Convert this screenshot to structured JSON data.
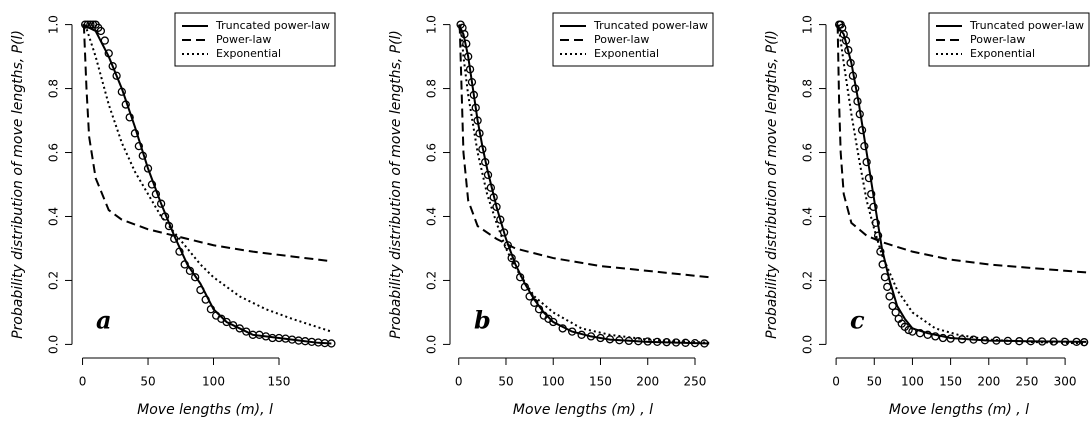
{
  "chart_data": [
    {
      "type": "line",
      "annotation": "a",
      "xlabel": "Move lengths (m), l",
      "ylabel": "Probability distribution of move lengths, P(l)",
      "xlim": [
        -5,
        192
      ],
      "ylim": [
        -0.03,
        1.03
      ],
      "xticks": [
        0,
        50,
        100,
        150
      ],
      "yticks": [
        {
          "value": 0,
          "label": "0.0"
        },
        {
          "value": 0.2,
          "label": "0.2"
        },
        {
          "value": 0.4,
          "label": "0.4"
        },
        {
          "value": 0.6,
          "label": "0.6"
        },
        {
          "value": 0.8,
          "label": "0.8"
        },
        {
          "value": 1,
          "label": "1.0"
        }
      ],
      "legend": "top-right",
      "series": [
        {
          "name": "Truncated power-law",
          "color": "#000000",
          "linestyle": "solid",
          "x": [
            0,
            10,
            20,
            30,
            40,
            50,
            60,
            70,
            80,
            90,
            100,
            110,
            120,
            130,
            140,
            150,
            160,
            170,
            180,
            190
          ],
          "values": [
            1.0,
            0.98,
            0.9,
            0.8,
            0.68,
            0.55,
            0.44,
            0.34,
            0.25,
            0.19,
            0.11,
            0.07,
            0.05,
            0.03,
            0.025,
            0.02,
            0.015,
            0.01,
            0.005,
            0.003
          ]
        },
        {
          "name": "Power-law",
          "color": "#000000",
          "linestyle": "dashed",
          "x": [
            1,
            3,
            5,
            10,
            20,
            30,
            50,
            70,
            100,
            130,
            160,
            190
          ],
          "values": [
            1.0,
            0.8,
            0.65,
            0.52,
            0.42,
            0.39,
            0.36,
            0.34,
            0.31,
            0.29,
            0.275,
            0.26
          ]
        },
        {
          "name": "Exponential",
          "color": "#000000",
          "linestyle": "dotted",
          "x": [
            2,
            10,
            20,
            30,
            40,
            50,
            60,
            70,
            80,
            90,
            100,
            120,
            140,
            160,
            190
          ],
          "values": [
            1.0,
            0.9,
            0.75,
            0.63,
            0.54,
            0.47,
            0.4,
            0.35,
            0.3,
            0.25,
            0.21,
            0.15,
            0.11,
            0.08,
            0.04
          ]
        }
      ],
      "observed": {
        "color": "#000000",
        "x": [
          2,
          4,
          6,
          8,
          10,
          12,
          14,
          17,
          20,
          23,
          26,
          30,
          33,
          36,
          40,
          43,
          46,
          50,
          53,
          56,
          60,
          63,
          66,
          70,
          74,
          78,
          82,
          86,
          90,
          94,
          98,
          102,
          106,
          110,
          115,
          120,
          125,
          130,
          135,
          140,
          145,
          150,
          155,
          160,
          165,
          170,
          175,
          180,
          185,
          190
        ],
        "values": [
          1,
          1,
          1,
          1,
          1,
          0.99,
          0.98,
          0.95,
          0.91,
          0.87,
          0.84,
          0.79,
          0.75,
          0.71,
          0.66,
          0.62,
          0.59,
          0.55,
          0.5,
          0.47,
          0.44,
          0.4,
          0.37,
          0.33,
          0.29,
          0.25,
          0.23,
          0.21,
          0.17,
          0.14,
          0.11,
          0.09,
          0.08,
          0.07,
          0.06,
          0.05,
          0.04,
          0.03,
          0.03,
          0.025,
          0.02,
          0.02,
          0.018,
          0.015,
          0.012,
          0.01,
          0.008,
          0.006,
          0.004,
          0.003
        ]
      }
    },
    {
      "type": "line",
      "annotation": "b",
      "xlabel": "Move lengths (m) , l",
      "ylabel": "Probability distribution of move lengths, P(l)",
      "xlim": [
        -5,
        268
      ],
      "ylim": [
        -0.03,
        1.03
      ],
      "xticks": [
        0,
        50,
        100,
        150,
        200,
        250
      ],
      "yticks": [
        {
          "value": 0,
          "label": "0.0"
        },
        {
          "value": 0.2,
          "label": "0.2"
        },
        {
          "value": 0.4,
          "label": "0.4"
        },
        {
          "value": 0.6,
          "label": "0.6"
        },
        {
          "value": 0.8,
          "label": "0.8"
        },
        {
          "value": 1,
          "label": "1.0"
        }
      ],
      "legend": "top-right",
      "series": [
        {
          "name": "Truncated power-law",
          "color": "#000000",
          "linestyle": "solid",
          "x": [
            0,
            5,
            10,
            15,
            20,
            25,
            30,
            40,
            50,
            60,
            70,
            80,
            90,
            100,
            120,
            140,
            160,
            200,
            265
          ],
          "values": [
            1.0,
            0.97,
            0.9,
            0.8,
            0.7,
            0.62,
            0.55,
            0.43,
            0.33,
            0.25,
            0.19,
            0.14,
            0.1,
            0.07,
            0.04,
            0.025,
            0.015,
            0.008,
            0.003
          ]
        },
        {
          "name": "Power-law",
          "color": "#000000",
          "linestyle": "dashed",
          "x": [
            1,
            3,
            5,
            10,
            20,
            40,
            60,
            100,
            150,
            200,
            265
          ],
          "values": [
            1.0,
            0.8,
            0.6,
            0.45,
            0.37,
            0.33,
            0.3,
            0.27,
            0.245,
            0.23,
            0.21
          ]
        },
        {
          "name": "Exponential",
          "color": "#000000",
          "linestyle": "dotted",
          "x": [
            2,
            5,
            10,
            20,
            30,
            40,
            50,
            60,
            80,
            100,
            130,
            160,
            200,
            265
          ],
          "values": [
            1.0,
            0.9,
            0.78,
            0.6,
            0.47,
            0.38,
            0.3,
            0.24,
            0.15,
            0.1,
            0.05,
            0.03,
            0.015,
            0.005
          ]
        }
      ],
      "observed": {
        "color": "#000000",
        "x": [
          2,
          4,
          6,
          8,
          10,
          12,
          14,
          16,
          18,
          20,
          22,
          25,
          28,
          31,
          34,
          37,
          40,
          44,
          48,
          52,
          56,
          60,
          65,
          70,
          75,
          80,
          85,
          90,
          95,
          100,
          110,
          120,
          130,
          140,
          150,
          160,
          170,
          180,
          190,
          200,
          210,
          220,
          230,
          240,
          250,
          260
        ],
        "values": [
          1,
          0.99,
          0.97,
          0.94,
          0.9,
          0.86,
          0.82,
          0.78,
          0.74,
          0.7,
          0.66,
          0.61,
          0.57,
          0.53,
          0.49,
          0.46,
          0.43,
          0.39,
          0.35,
          0.31,
          0.27,
          0.25,
          0.21,
          0.18,
          0.15,
          0.13,
          0.11,
          0.09,
          0.08,
          0.07,
          0.05,
          0.04,
          0.03,
          0.025,
          0.02,
          0.016,
          0.013,
          0.011,
          0.01,
          0.009,
          0.008,
          0.007,
          0.006,
          0.005,
          0.004,
          0.003
        ]
      }
    },
    {
      "type": "line",
      "annotation": "c",
      "xlabel": "Move lengths (m) , l",
      "ylabel": "Probability distribution of move lengths, P(l)",
      "xlim": [
        -8,
        330
      ],
      "ylim": [
        -0.03,
        1.03
      ],
      "xticks": [
        0,
        50,
        100,
        150,
        200,
        250,
        300
      ],
      "yticks": [
        {
          "value": 0,
          "label": "0.0"
        },
        {
          "value": 0.2,
          "label": "0.2"
        },
        {
          "value": 0.4,
          "label": "0.4"
        },
        {
          "value": 0.6,
          "label": "0.6"
        },
        {
          "value": 0.8,
          "label": "0.8"
        },
        {
          "value": 1,
          "label": "1.0"
        }
      ],
      "legend": "top-right",
      "series": [
        {
          "name": "Truncated power-law",
          "color": "#000000",
          "linestyle": "solid",
          "x": [
            0,
            10,
            20,
            30,
            40,
            50,
            60,
            70,
            80,
            90,
            100,
            120,
            150,
            200,
            250,
            328
          ],
          "values": [
            1.0,
            0.97,
            0.88,
            0.75,
            0.6,
            0.45,
            0.3,
            0.2,
            0.12,
            0.08,
            0.05,
            0.035,
            0.02,
            0.012,
            0.01,
            0.008
          ]
        },
        {
          "name": "Power-law",
          "color": "#000000",
          "linestyle": "dashed",
          "x": [
            2,
            4,
            6,
            10,
            20,
            40,
            60,
            100,
            150,
            200,
            250,
            328
          ],
          "values": [
            1.0,
            0.75,
            0.6,
            0.47,
            0.38,
            0.34,
            0.32,
            0.29,
            0.265,
            0.25,
            0.24,
            0.225
          ]
        },
        {
          "name": "Exponential",
          "color": "#000000",
          "linestyle": "dotted",
          "x": [
            3,
            10,
            20,
            30,
            40,
            50,
            60,
            80,
            100,
            130,
            160,
            200,
            250,
            328
          ],
          "values": [
            1.0,
            0.88,
            0.72,
            0.58,
            0.45,
            0.36,
            0.28,
            0.17,
            0.1,
            0.05,
            0.03,
            0.015,
            0.008,
            0.003
          ]
        }
      ],
      "observed": {
        "color": "#000000",
        "x": [
          4,
          6,
          8,
          10,
          13,
          16,
          19,
          22,
          25,
          28,
          31,
          34,
          37,
          40,
          43,
          46,
          49,
          52,
          55,
          58,
          61,
          64,
          67,
          70,
          74,
          78,
          82,
          86,
          90,
          95,
          100,
          110,
          120,
          130,
          140,
          150,
          165,
          180,
          195,
          210,
          225,
          240,
          255,
          270,
          285,
          300,
          315,
          325
        ],
        "values": [
          1,
          1,
          0.99,
          0.97,
          0.95,
          0.92,
          0.88,
          0.84,
          0.8,
          0.76,
          0.72,
          0.67,
          0.62,
          0.57,
          0.52,
          0.47,
          0.43,
          0.38,
          0.34,
          0.29,
          0.25,
          0.21,
          0.18,
          0.15,
          0.12,
          0.1,
          0.08,
          0.065,
          0.055,
          0.045,
          0.04,
          0.035,
          0.03,
          0.025,
          0.02,
          0.018,
          0.016,
          0.015,
          0.013,
          0.012,
          0.011,
          0.01,
          0.01,
          0.009,
          0.009,
          0.008,
          0.008,
          0.007
        ]
      }
    }
  ]
}
